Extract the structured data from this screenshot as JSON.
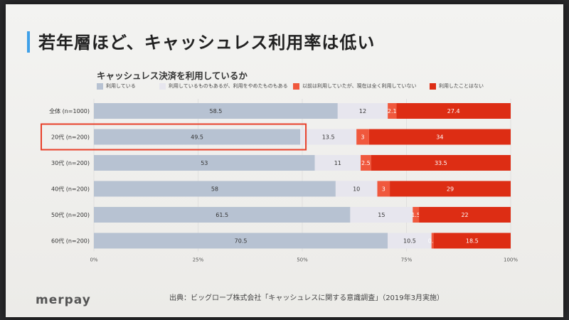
{
  "slide": {
    "title": "若年層ほど、キャッシュレス利用率は低い",
    "brand": "merpay",
    "source": "出典：ビッグローブ株式会社「キャッシュレスに関する意識調査」（2019年3月実施）"
  },
  "chart_data": {
    "type": "bar",
    "orientation": "horizontal",
    "stacked": true,
    "title": "キャッシュレス決済を利用しているか",
    "categories": [
      "全体 (n=1000)",
      "20代 (n=200)",
      "30代 (n=200)",
      "40代 (n=200)",
      "50代 (n=200)",
      "60代 (n=200)"
    ],
    "series": [
      {
        "name": "利用している",
        "color": "#b7c2d2",
        "values": [
          58.5,
          49.5,
          53,
          58,
          61.5,
          70.5
        ]
      },
      {
        "name": "利用しているものもあるが、利用をやめたものもある",
        "color": "#e7e6ee",
        "values": [
          12,
          13.5,
          11,
          10,
          15,
          10.5
        ]
      },
      {
        "name": "以前は利用していたが、現在は全く利用していない",
        "color": "#f0583d",
        "values": [
          2.1,
          3,
          2.5,
          3,
          1.5,
          0.5
        ]
      },
      {
        "name": "利用したことはない",
        "color": "#dd2d14",
        "values": [
          27.4,
          34,
          33.5,
          29,
          22,
          18.5
        ]
      }
    ],
    "value_labels": [
      [
        "58.5",
        "12",
        "2.1",
        "27.4"
      ],
      [
        "49.5",
        "13.5",
        "3",
        "34"
      ],
      [
        "53",
        "11",
        "2.5",
        "33.5"
      ],
      [
        "58",
        "10",
        "3",
        "29"
      ],
      [
        "61.5",
        "15",
        "1.5",
        "22"
      ],
      [
        "70.5",
        "10.5",
        "0.5",
        "18.5"
      ]
    ],
    "xticks": [
      "0%",
      "25%",
      "50%",
      "75%",
      "100%"
    ],
    "xlim": [
      0,
      100
    ],
    "legend_position": "top",
    "highlight_category": "20代 (n=200)",
    "highlight_color": "#e8402a"
  }
}
